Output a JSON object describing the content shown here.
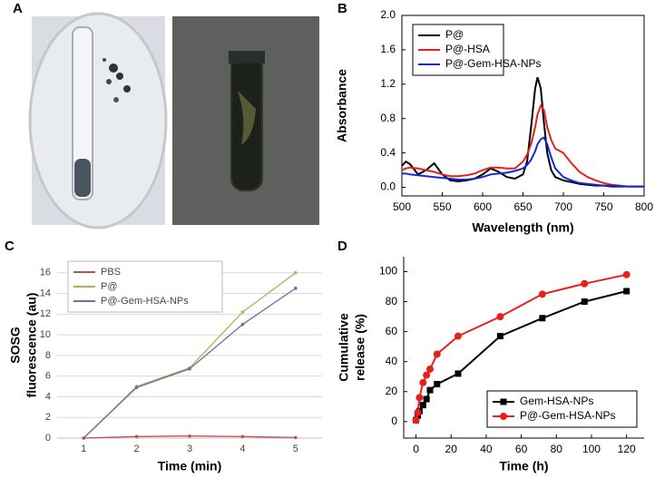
{
  "panel_a": {
    "label": "A"
  },
  "chart_data": [
    {
      "type": "line",
      "panel_label": "B",
      "xlabel": "Wavelength (nm)",
      "ylabel": [
        "Absorbance"
      ],
      "x": [
        500,
        505,
        510,
        520,
        530,
        540,
        550,
        560,
        570,
        580,
        590,
        600,
        610,
        620,
        630,
        640,
        650,
        655,
        660,
        665,
        668,
        672,
        676,
        680,
        685,
        690,
        700,
        710,
        720,
        730,
        740,
        750,
        760,
        780,
        800
      ],
      "series": [
        {
          "name": "P@",
          "color": "#000000",
          "values": [
            0.25,
            0.3,
            0.27,
            0.15,
            0.2,
            0.28,
            0.15,
            0.08,
            0.07,
            0.08,
            0.1,
            0.15,
            0.22,
            0.18,
            0.12,
            0.1,
            0.15,
            0.3,
            0.7,
            1.15,
            1.28,
            1.15,
            0.75,
            0.4,
            0.2,
            0.12,
            0.08,
            0.06,
            0.04,
            0.03,
            0.02,
            0.02,
            0.01,
            0.01,
            0.01
          ]
        },
        {
          "name": "P@-HSA",
          "color": "#e8201c",
          "values": [
            0.2,
            0.22,
            0.23,
            0.22,
            0.2,
            0.18,
            0.15,
            0.13,
            0.13,
            0.14,
            0.16,
            0.2,
            0.23,
            0.23,
            0.22,
            0.22,
            0.3,
            0.38,
            0.5,
            0.7,
            0.85,
            0.95,
            0.9,
            0.7,
            0.55,
            0.45,
            0.4,
            0.28,
            0.18,
            0.12,
            0.08,
            0.05,
            0.03,
            0.01,
            0.01
          ]
        },
        {
          "name": "P@-Gem-HSA-NPs",
          "color": "#1428d8",
          "values": [
            0.16,
            0.16,
            0.15,
            0.14,
            0.13,
            0.12,
            0.11,
            0.1,
            0.09,
            0.09,
            0.1,
            0.12,
            0.15,
            0.16,
            0.17,
            0.19,
            0.22,
            0.26,
            0.32,
            0.42,
            0.5,
            0.56,
            0.58,
            0.5,
            0.35,
            0.22,
            0.12,
            0.08,
            0.05,
            0.04,
            0.03,
            0.02,
            0.02,
            0.01,
            0.01
          ]
        }
      ],
      "xlim": [
        500,
        800
      ],
      "xticks": [
        500,
        550,
        600,
        650,
        700,
        750,
        800
      ],
      "ylim": [
        -0.1,
        2.0
      ],
      "yticks": [
        {
          "value": 0,
          "label": "0.0"
        },
        0.4,
        0.8,
        1.2,
        1.6,
        {
          "value": 2,
          "label": "2.0"
        }
      ],
      "grid": false,
      "frame": "box",
      "legend": "upper left"
    },
    {
      "type": "line",
      "panel_label": "C",
      "xlabel": "Time (min)",
      "ylabel": [
        "SOSG",
        "fluorescence (au)"
      ],
      "categories": [
        "1",
        "2",
        "3",
        "4",
        "5"
      ],
      "series": [
        {
          "name": "PBS",
          "color": "#c0504d",
          "values": [
            0,
            0.15,
            0.2,
            0.15,
            0.05
          ]
        },
        {
          "name": "P@",
          "color": "#9bbb59",
          "values": [
            0,
            5.0,
            6.8,
            12.2,
            16.0
          ]
        },
        {
          "name": "P@-Gem-HSA-NPs",
          "color": "#8064a2",
          "values": [
            0,
            4.9,
            6.7,
            11.0,
            14.5
          ]
        }
      ],
      "ylim": [
        0,
        18
      ],
      "yticks": [
        0,
        2,
        4,
        6,
        8,
        10,
        12,
        14,
        16
      ],
      "grid": true,
      "frame": "none",
      "legend": "upper left"
    },
    {
      "type": "line",
      "panel_label": "D",
      "xlabel": "Time (h)",
      "ylabel": [
        "Cumulative",
        "release (%)"
      ],
      "x": [
        0,
        1,
        2,
        4,
        6,
        8,
        12,
        24,
        48,
        72,
        96,
        120
      ],
      "series": [
        {
          "name": "Gem-HSA-NPs",
          "color": "#000000",
          "marker": "square",
          "values": [
            1,
            4,
            7,
            11,
            15,
            21,
            25,
            32,
            57,
            69,
            80,
            87
          ]
        },
        {
          "name": "P@-Gem-HSA-NPs",
          "color": "#e8201c",
          "marker": "circle",
          "values": [
            1,
            6,
            16,
            26,
            31,
            35,
            45,
            57,
            70,
            85,
            92,
            98
          ]
        }
      ],
      "xlim": [
        -7,
        130
      ],
      "xticks": [
        0,
        20,
        40,
        60,
        80,
        100,
        120
      ],
      "ylim": [
        -11,
        110
      ],
      "yticks": [
        0,
        20,
        40,
        60,
        80,
        100
      ],
      "grid": false,
      "frame": "axes",
      "legend": "lower right"
    }
  ]
}
